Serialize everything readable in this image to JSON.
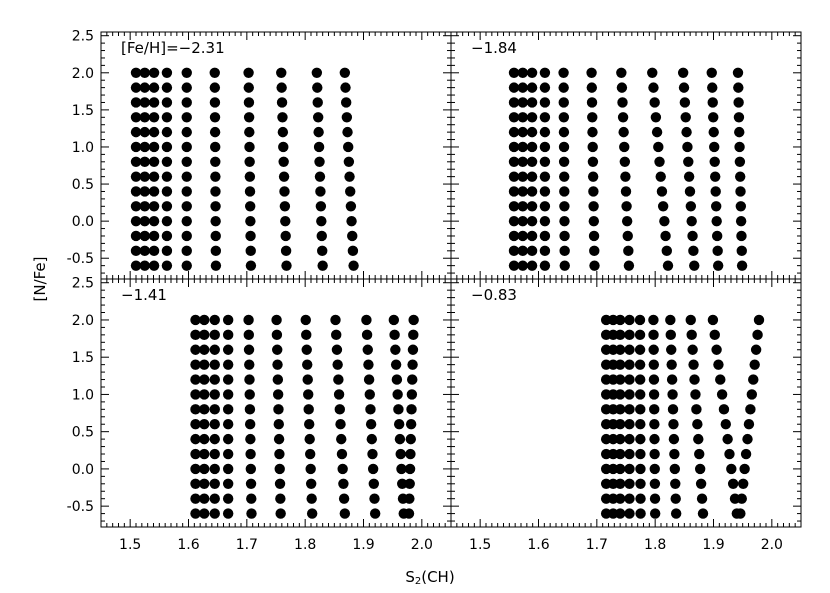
{
  "figure": {
    "xlabel": "S",
    "xlabel_sub": "2",
    "xlabel_tail": "(CH)",
    "ylabel": "[N/Fe]"
  },
  "chart_data": [
    {
      "type": "scatter",
      "panel": "top-left",
      "title": "[Fe/H]=−2.31",
      "xlim": [
        1.45,
        2.05
      ],
      "ylim": [
        -0.78,
        2.55
      ],
      "xticks": [
        "1.5",
        "1.6",
        "1.7",
        "1.8",
        "1.9",
        "2.0"
      ],
      "yticks": [
        "-0.5",
        "0.0",
        "0.5",
        "1.0",
        "1.5",
        "2.0",
        "2.5"
      ],
      "y_levels": [
        -0.6,
        -0.4,
        -0.2,
        0.0,
        0.2,
        0.4,
        0.6,
        0.8,
        1.0,
        1.2,
        1.4,
        1.6,
        1.8,
        2.0
      ],
      "columns": [
        {
          "x_top": 1.51,
          "x_bottom": 1.51
        },
        {
          "x_top": 1.525,
          "x_bottom": 1.525
        },
        {
          "x_top": 1.541,
          "x_bottom": 1.541
        },
        {
          "x_top": 1.563,
          "x_bottom": 1.563
        },
        {
          "x_top": 1.597,
          "x_bottom": 1.597
        },
        {
          "x_top": 1.645,
          "x_bottom": 1.647
        },
        {
          "x_top": 1.703,
          "x_bottom": 1.707
        },
        {
          "x_top": 1.759,
          "x_bottom": 1.768
        },
        {
          "x_top": 1.82,
          "x_bottom": 1.83
        },
        {
          "x_top": 1.868,
          "x_bottom": 1.883
        }
      ]
    },
    {
      "type": "scatter",
      "panel": "top-right",
      "title": "−1.84",
      "xlim": [
        1.45,
        2.05
      ],
      "ylim": [
        -0.78,
        2.55
      ],
      "xticks": [
        "1.5",
        "1.6",
        "1.7",
        "1.8",
        "1.9",
        "2.0"
      ],
      "yticks": [],
      "y_levels": [
        -0.6,
        -0.4,
        -0.2,
        0.0,
        0.2,
        0.4,
        0.6,
        0.8,
        1.0,
        1.2,
        1.4,
        1.6,
        1.8,
        2.0
      ],
      "columns": [
        {
          "x_top": 1.558,
          "x_bottom": 1.558
        },
        {
          "x_top": 1.573,
          "x_bottom": 1.573
        },
        {
          "x_top": 1.589,
          "x_bottom": 1.589
        },
        {
          "x_top": 1.611,
          "x_bottom": 1.611
        },
        {
          "x_top": 1.643,
          "x_bottom": 1.645
        },
        {
          "x_top": 1.691,
          "x_bottom": 1.696
        },
        {
          "x_top": 1.742,
          "x_bottom": 1.755
        },
        {
          "x_top": 1.795,
          "x_bottom": 1.822
        },
        {
          "x_top": 1.848,
          "x_bottom": 1.867
        },
        {
          "x_top": 1.897,
          "x_bottom": 1.908
        },
        {
          "x_top": 1.942,
          "x_bottom": 1.949
        }
      ]
    },
    {
      "type": "scatter",
      "panel": "bottom-left",
      "title": "−1.41",
      "xlim": [
        1.45,
        2.05
      ],
      "ylim": [
        -0.78,
        2.55
      ],
      "xticks": [
        "1.5",
        "1.6",
        "1.7",
        "1.8",
        "1.9",
        "2.0"
      ],
      "yticks": [
        "-0.5",
        "0.0",
        "0.5",
        "1.0",
        "1.5",
        "2.0",
        "2.5"
      ],
      "y_levels": [
        -0.6,
        -0.4,
        -0.2,
        0.0,
        0.2,
        0.4,
        0.6,
        0.8,
        1.0,
        1.2,
        1.4,
        1.6,
        1.8,
        2.0
      ],
      "columns": [
        {
          "x_top": 1.612,
          "x_bottom": 1.612
        },
        {
          "x_top": 1.627,
          "x_bottom": 1.627
        },
        {
          "x_top": 1.645,
          "x_bottom": 1.645
        },
        {
          "x_top": 1.668,
          "x_bottom": 1.668
        },
        {
          "x_top": 1.703,
          "x_bottom": 1.708
        },
        {
          "x_top": 1.751,
          "x_bottom": 1.758
        },
        {
          "x_top": 1.801,
          "x_bottom": 1.812
        },
        {
          "x_top": 1.852,
          "x_bottom": 1.868
        },
        {
          "x_top": 1.905,
          "x_bottom": 1.92
        },
        {
          "x_top": 1.952,
          "x_bottom": 1.969
        },
        {
          "x_top": 1.986,
          "x_bottom": 1.978
        }
      ]
    },
    {
      "type": "scatter",
      "panel": "bottom-right",
      "title": "−0.83",
      "xlim": [
        1.45,
        2.05
      ],
      "ylim": [
        -0.78,
        2.55
      ],
      "xticks": [
        "1.5",
        "1.6",
        "1.7",
        "1.8",
        "1.9",
        "2.0"
      ],
      "yticks": [],
      "y_levels": [
        -0.6,
        -0.4,
        -0.2,
        0.0,
        0.2,
        0.4,
        0.6,
        0.8,
        1.0,
        1.2,
        1.4,
        1.6,
        1.8,
        2.0
      ],
      "columns": [
        {
          "x_top": 1.716,
          "x_bottom": 1.716
        },
        {
          "x_top": 1.728,
          "x_bottom": 1.728
        },
        {
          "x_top": 1.74,
          "x_bottom": 1.74
        },
        {
          "x_top": 1.756,
          "x_bottom": 1.756
        },
        {
          "x_top": 1.774,
          "x_bottom": 1.775
        },
        {
          "x_top": 1.797,
          "x_bottom": 1.8
        },
        {
          "x_top": 1.826,
          "x_bottom": 1.836
        },
        {
          "x_top": 1.861,
          "x_bottom": 1.882
        },
        {
          "x_top": 1.899,
          "x_bottom": 1.94
        },
        {
          "x_top": 1.978,
          "x_bottom": 1.946
        }
      ]
    }
  ]
}
